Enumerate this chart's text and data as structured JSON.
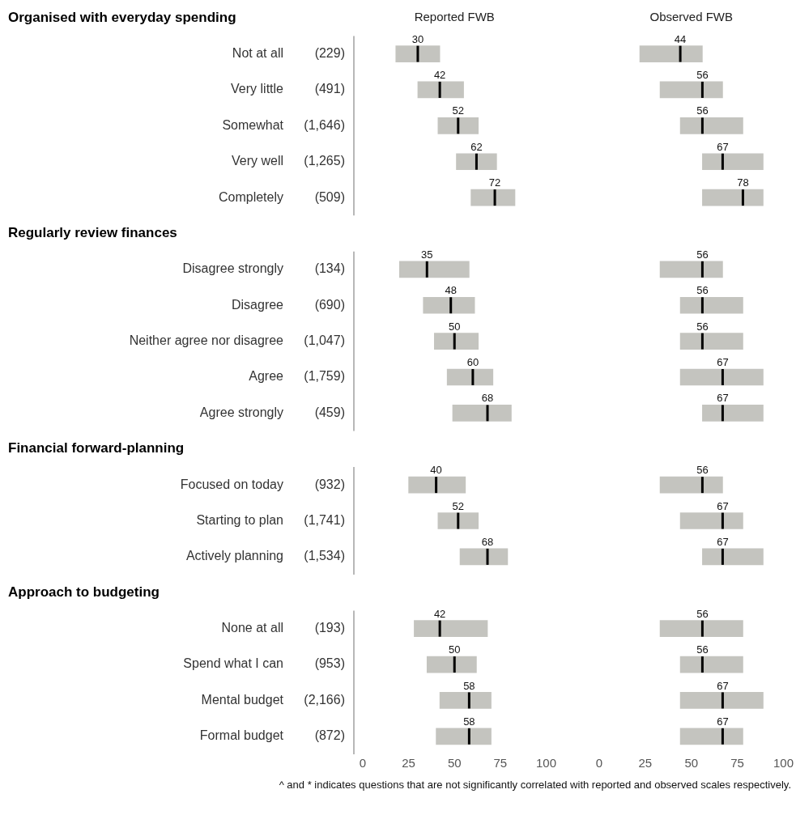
{
  "chart_data": [
    {
      "type": "box",
      "title": "Reported FWB",
      "orientation": "horizontal",
      "xlim": [
        0,
        100
      ],
      "xticks": [
        0,
        25,
        50,
        75,
        100
      ],
      "categories": [
        null,
        "Not at all",
        "Very little",
        "Somewhat",
        "Very well",
        "Completely",
        null,
        "Disagree strongly",
        "Disagree",
        "Neither agree nor disagree",
        "Agree",
        "Agree strongly",
        null,
        "Focused on today",
        "Starting to plan",
        "Actively planning",
        null,
        "None at all",
        "Spend what I can",
        "Mental budget",
        "Formal budget"
      ],
      "annotations": [
        "Organised with everyday spending",
        "Regularly review finances",
        "Financial forward-planning",
        "Approach to budgeting",
        "(229)",
        "(491)",
        "(1,646)",
        "(1,265)",
        "(509)",
        "(134)",
        "(690)",
        "(1,047)",
        "(1,759)",
        "(459)",
        "(932)",
        "(1,741)",
        "(1,534)",
        "(193)",
        "(953)",
        "(2,166)",
        "(872)"
      ],
      "series": [
        {
          "color": "#c4c4bf",
          "value_labels": [
            null,
            "30",
            "42",
            "52",
            "62",
            "72",
            null,
            "35",
            "48",
            "50",
            "60",
            "68",
            null,
            "40",
            "52",
            "68",
            null,
            "42",
            "50",
            "58",
            "58"
          ],
          "boxes": [
            null,
            {
              "q1": 18,
              "median": 30,
              "q3": 42
            },
            {
              "q1": 30,
              "median": 42,
              "q3": 55
            },
            {
              "q1": 41,
              "median": 52,
              "q3": 63
            },
            {
              "q1": 51,
              "median": 62,
              "q3": 73
            },
            {
              "q1": 59,
              "median": 72,
              "q3": 83
            },
            null,
            {
              "q1": 20,
              "median": 35,
              "q3": 58
            },
            {
              "q1": 33,
              "median": 48,
              "q3": 61
            },
            {
              "q1": 39,
              "median": 50,
              "q3": 63
            },
            {
              "q1": 46,
              "median": 60,
              "q3": 71
            },
            {
              "q1": 49,
              "median": 68,
              "q3": 81
            },
            null,
            {
              "q1": 25,
              "median": 40,
              "q3": 56
            },
            {
              "q1": 41,
              "median": 52,
              "q3": 63
            },
            {
              "q1": 53,
              "median": 68,
              "q3": 79
            },
            null,
            {
              "q1": 28,
              "median": 42,
              "q3": 68
            },
            {
              "q1": 35,
              "median": 50,
              "q3": 62
            },
            {
              "q1": 42,
              "median": 58,
              "q3": 70
            },
            {
              "q1": 40,
              "median": 58,
              "q3": 70
            }
          ]
        }
      ]
    },
    {
      "type": "box",
      "title": "Observed FWB",
      "orientation": "horizontal",
      "xlim": [
        0,
        100
      ],
      "xticks": [
        0,
        25,
        50,
        75,
        100
      ],
      "tick_labels": "x",
      "categories": [
        null,
        null,
        null,
        null,
        null,
        null,
        null,
        null,
        null,
        null,
        null,
        null,
        null,
        null,
        null,
        null,
        null,
        null,
        null,
        null,
        null
      ],
      "annotations": [
        "^ and * indicates questions that are not significantly correlated with reported and observed scales respectively."
      ],
      "series": [
        {
          "color": "#c4c4bf",
          "value_labels": [
            null,
            "44",
            "56",
            "56",
            "67",
            "78",
            null,
            "56",
            "56",
            "56",
            "67",
            "67",
            null,
            "56",
            "67",
            "67",
            null,
            "56",
            "56",
            "67",
            "67"
          ],
          "boxes": [
            null,
            {
              "q1": 22,
              "median": 44,
              "q3": 56
            },
            {
              "q1": 33,
              "median": 56,
              "q3": 67
            },
            {
              "q1": 44,
              "median": 56,
              "q3": 78
            },
            {
              "q1": 56,
              "median": 67,
              "q3": 89
            },
            {
              "q1": 56,
              "median": 78,
              "q3": 89
            },
            null,
            {
              "q1": 33,
              "median": 56,
              "q3": 67
            },
            {
              "q1": 44,
              "median": 56,
              "q3": 78
            },
            {
              "q1": 44,
              "median": 56,
              "q3": 78
            },
            {
              "q1": 44,
              "median": 67,
              "q3": 89
            },
            {
              "q1": 56,
              "median": 67,
              "q3": 89
            },
            null,
            {
              "q1": 33,
              "median": 56,
              "q3": 67
            },
            {
              "q1": 44,
              "median": 67,
              "q3": 78
            },
            {
              "q1": 56,
              "median": 67,
              "q3": 89
            },
            null,
            {
              "q1": 33,
              "median": 56,
              "q3": 78
            },
            {
              "q1": 44,
              "median": 56,
              "q3": 78
            },
            {
              "q1": 44,
              "median": 67,
              "q3": 89
            },
            {
              "q1": 44,
              "median": 67,
              "q3": 78
            }
          ]
        }
      ]
    }
  ]
}
